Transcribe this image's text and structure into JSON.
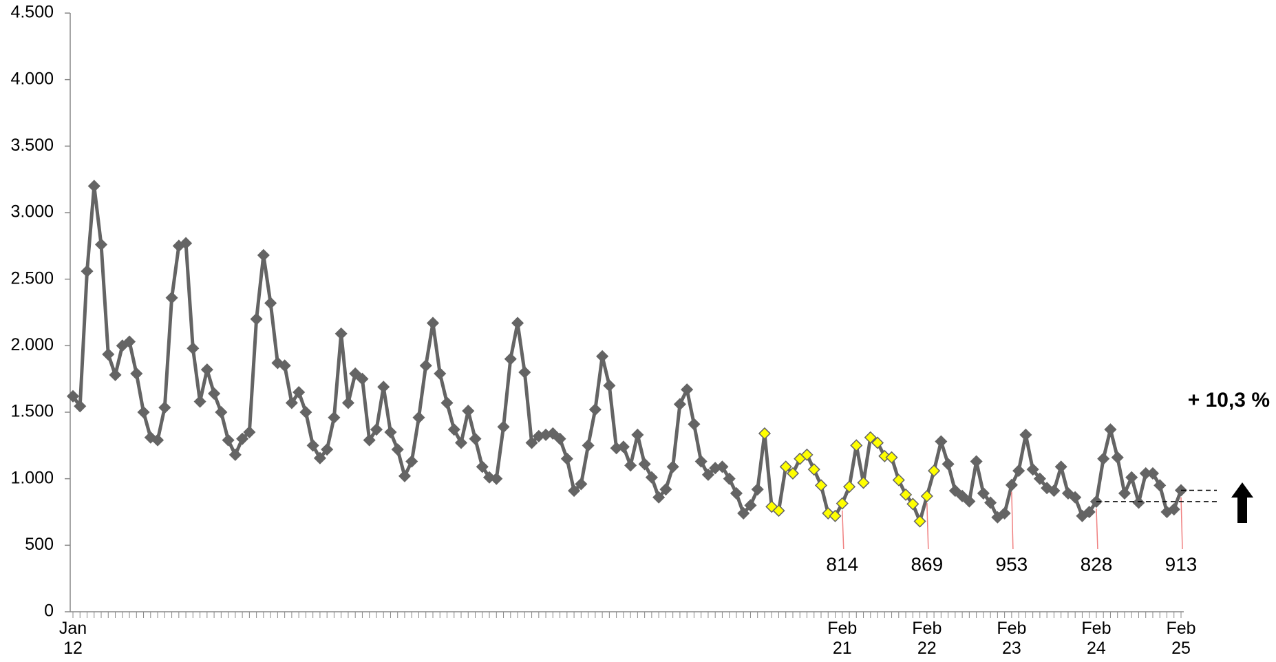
{
  "chart_data": {
    "type": "line",
    "categories": [
      "Jan 12",
      null,
      null,
      null,
      null,
      null,
      null,
      null,
      null,
      null,
      null,
      null,
      null,
      null,
      null,
      null,
      null,
      null,
      null,
      null,
      null,
      null,
      null,
      null,
      null,
      null,
      null,
      null,
      null,
      null,
      null,
      null,
      null,
      null,
      null,
      null,
      null,
      null,
      null,
      null,
      null,
      null,
      null,
      null,
      null,
      null,
      null,
      null,
      null,
      null,
      null,
      null,
      null,
      null,
      null,
      null,
      null,
      null,
      null,
      null,
      null,
      null,
      null,
      null,
      null,
      null,
      null,
      null,
      null,
      null,
      null,
      null,
      null,
      null,
      null,
      null,
      null,
      null,
      null,
      null,
      null,
      null,
      null,
      null,
      null,
      null,
      null,
      null,
      null,
      null,
      null,
      null,
      null,
      null,
      null,
      null,
      null,
      null,
      null,
      null,
      null,
      null,
      null,
      null,
      null,
      null,
      null,
      null,
      null,
      "Feb 21",
      null,
      null,
      null,
      null,
      null,
      null,
      null,
      null,
      null,
      null,
      null,
      "Feb 22",
      null,
      null,
      null,
      null,
      null,
      null,
      null,
      null,
      null,
      null,
      null,
      "Feb 23",
      null,
      null,
      null,
      null,
      null,
      null,
      null,
      null,
      null,
      null,
      null,
      "Feb 24",
      null,
      null,
      null,
      null,
      null,
      null,
      null,
      null,
      null,
      null,
      null,
      "Feb 25"
    ],
    "series": [
      {
        "color": "#646464",
        "values": [
          1620,
          1545,
          2560,
          3200,
          2760,
          1935,
          1780,
          2000,
          2030,
          1790,
          1500,
          1310,
          1290,
          1535,
          2360,
          2750,
          2770,
          1980,
          1580,
          1820,
          1640,
          1500,
          1290,
          1180,
          1300,
          1350,
          2200,
          2680,
          2320,
          1870,
          1850,
          1570,
          1650,
          1500,
          1250,
          1155,
          1220,
          1460,
          2090,
          1570,
          1790,
          1750,
          1290,
          1370,
          1690,
          1350,
          1220,
          1020,
          1130,
          1460,
          1850,
          2170,
          1790,
          1570,
          1370,
          1270,
          1510,
          1300,
          1090,
          1010,
          1000,
          1390,
          1900,
          2170,
          1800,
          1270,
          1320,
          1330,
          1340,
          1300,
          1150,
          910,
          960,
          1250,
          1520,
          1920,
          1700,
          1230,
          1240,
          1100,
          1330,
          1110,
          1010,
          860,
          920,
          1090,
          1560,
          1670,
          1410,
          1130,
          1030,
          1080,
          1090,
          1000,
          890,
          740,
          800,
          920,
          1340,
          790,
          760,
          1090,
          1040,
          1150,
          1180,
          1070,
          950,
          740,
          720,
          814,
          940,
          1250,
          970,
          1310,
          1270,
          1170,
          1160,
          990,
          880,
          810,
          680,
          869,
          1060,
          1280,
          1110,
          910,
          870,
          830,
          1130,
          890,
          820,
          710,
          740,
          953,
          1060,
          1330,
          1070,
          1000,
          930,
          910,
          1090,
          890,
          860,
          720,
          750,
          828,
          1150,
          1370,
          1160,
          890,
          1010,
          820,
          1040,
          1040,
          950,
          750,
          770,
          913
        ],
        "value_labels": [
          null,
          null,
          null,
          null,
          null,
          null,
          null,
          null,
          null,
          null,
          null,
          null,
          null,
          null,
          null,
          null,
          null,
          null,
          null,
          null,
          null,
          null,
          null,
          null,
          null,
          null,
          null,
          null,
          null,
          null,
          null,
          null,
          null,
          null,
          null,
          null,
          null,
          null,
          null,
          null,
          null,
          null,
          null,
          null,
          null,
          null,
          null,
          null,
          null,
          null,
          null,
          null,
          null,
          null,
          null,
          null,
          null,
          null,
          null,
          null,
          null,
          null,
          null,
          null,
          null,
          null,
          null,
          null,
          null,
          null,
          null,
          null,
          null,
          null,
          null,
          null,
          null,
          null,
          null,
          null,
          null,
          null,
          null,
          null,
          null,
          null,
          null,
          null,
          null,
          null,
          null,
          null,
          null,
          null,
          null,
          null,
          null,
          null,
          null,
          null,
          null,
          null,
          null,
          null,
          null,
          null,
          null,
          null,
          null,
          "814",
          null,
          null,
          null,
          null,
          null,
          null,
          null,
          null,
          null,
          null,
          null,
          "869",
          null,
          null,
          null,
          null,
          null,
          null,
          null,
          null,
          null,
          null,
          null,
          "953",
          null,
          null,
          null,
          null,
          null,
          null,
          null,
          null,
          null,
          null,
          null,
          "828",
          null,
          null,
          null,
          null,
          null,
          null,
          null,
          null,
          null,
          null,
          null,
          "913"
        ],
        "marker_colors": [
          "#646464",
          "#646464",
          "#646464",
          "#646464",
          "#646464",
          "#646464",
          "#646464",
          "#646464",
          "#646464",
          "#646464",
          "#646464",
          "#646464",
          "#646464",
          "#646464",
          "#646464",
          "#646464",
          "#646464",
          "#646464",
          "#646464",
          "#646464",
          "#646464",
          "#646464",
          "#646464",
          "#646464",
          "#646464",
          "#646464",
          "#646464",
          "#646464",
          "#646464",
          "#646464",
          "#646464",
          "#646464",
          "#646464",
          "#646464",
          "#646464",
          "#646464",
          "#646464",
          "#646464",
          "#646464",
          "#646464",
          "#646464",
          "#646464",
          "#646464",
          "#646464",
          "#646464",
          "#646464",
          "#646464",
          "#646464",
          "#646464",
          "#646464",
          "#646464",
          "#646464",
          "#646464",
          "#646464",
          "#646464",
          "#646464",
          "#646464",
          "#646464",
          "#646464",
          "#646464",
          "#646464",
          "#646464",
          "#646464",
          "#646464",
          "#646464",
          "#646464",
          "#646464",
          "#646464",
          "#646464",
          "#646464",
          "#646464",
          "#646464",
          "#646464",
          "#646464",
          "#646464",
          "#646464",
          "#646464",
          "#646464",
          "#646464",
          "#646464",
          "#646464",
          "#646464",
          "#646464",
          "#646464",
          "#646464",
          "#646464",
          "#646464",
          "#646464",
          "#646464",
          "#646464",
          "#646464",
          "#646464",
          "#646464",
          "#646464",
          "#646464",
          "#646464",
          "#646464",
          "#646464",
          "#ffff00",
          "#ffff00",
          "#ffff00",
          "#ffff00",
          "#ffff00",
          "#ffff00",
          "#ffff00",
          "#ffff00",
          "#ffff00",
          "#ffff00",
          "#ffff00",
          "#ffff00",
          "#ffff00",
          "#ffff00",
          "#ffff00",
          "#ffff00",
          "#ffff00",
          "#ffff00",
          "#ffff00",
          "#ffff00",
          "#ffff00",
          "#ffff00",
          "#ffff00",
          "#ffff00",
          "#ffff00",
          "#646464",
          "#646464",
          "#646464",
          "#646464",
          "#646464",
          "#646464",
          "#646464",
          "#646464",
          "#646464",
          "#646464",
          "#646464",
          "#646464",
          "#646464",
          "#646464",
          "#646464",
          "#646464",
          "#646464",
          "#646464",
          "#646464",
          "#646464",
          "#646464",
          "#646464",
          "#646464",
          "#646464",
          "#646464",
          "#646464",
          "#646464",
          "#646464",
          "#646464",
          "#646464",
          "#646464",
          "#646464",
          "#646464",
          "#646464",
          "#646464"
        ]
      }
    ],
    "ylim": [
      0,
      4500
    ],
    "yticks": [
      0,
      500,
      {
        "value": 1000,
        "label": "1.000"
      },
      {
        "value": 1500,
        "label": "1.500"
      },
      {
        "value": 2000,
        "label": "2.000"
      },
      {
        "value": 2500,
        "label": "2.500"
      },
      {
        "value": 3000,
        "label": "3.000"
      },
      {
        "value": 3500,
        "label": "3.500"
      },
      {
        "value": 4000,
        "label": "4.000"
      },
      {
        "value": 4500,
        "label": "4.500"
      }
    ],
    "grid": false,
    "annotation": "+ 10,3 %"
  }
}
